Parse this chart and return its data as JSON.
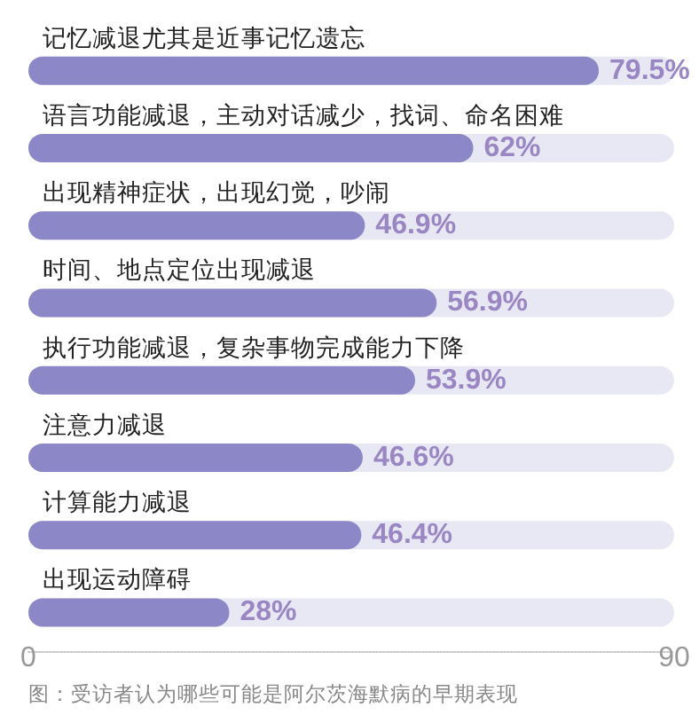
{
  "chart_data": {
    "type": "bar",
    "orientation": "horizontal",
    "categories": [
      "记忆减退尤其是近事记忆遗忘",
      "语言功能减退，主动对话减少，找词、命名困难",
      "出现精神症状，出现幻觉，吵闹",
      "时间、地点定位出现减退",
      "执行功能减退，复杂事物完成能力下降",
      "注意力减退",
      "计算能力减退",
      "出现运动障碍"
    ],
    "values": [
      79.5,
      62,
      46.9,
      56.9,
      53.9,
      46.6,
      46.4,
      28
    ],
    "value_labels": [
      "79.5%",
      "62%",
      "46.9%",
      "56.9%",
      "53.9%",
      "46.6%",
      "46.4%",
      "28%"
    ],
    "color": "#8c88c8",
    "xlim": [
      0,
      90
    ],
    "xticks": [
      0,
      90
    ],
    "grid": false,
    "annotations": [
      "图：受访者认为哪些可能是阿尔茨海默病的早期表现"
    ]
  }
}
